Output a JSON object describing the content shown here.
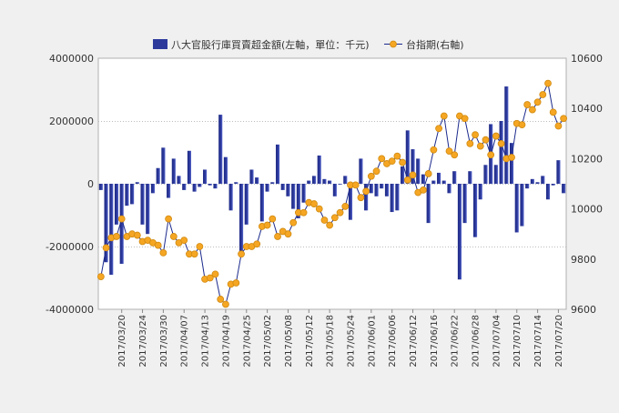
{
  "chart_data": {
    "type": "bar+line",
    "legend": {
      "placement": "top-center",
      "items": [
        {
          "label": "八大官股行庫買賣超金額(左軸，單位：千元)",
          "marker": "bar"
        },
        {
          "label": "台指期(右軸)",
          "marker": "line-circle"
        }
      ]
    },
    "left_axis": {
      "range": [
        -4000000,
        4000000
      ],
      "ticks": [
        "4000000",
        "2000000",
        "0",
        "-2000000",
        "-4000000"
      ],
      "tick_values": [
        4000000,
        2000000,
        0,
        -2000000,
        -4000000
      ]
    },
    "right_axis": {
      "range": [
        9600,
        10600
      ],
      "ticks": [
        "10600",
        "10400",
        "10200",
        "10000",
        "9800",
        "9600"
      ],
      "tick_values": [
        10600,
        10400,
        10200,
        10000,
        9800,
        9600
      ]
    },
    "x_tick_labels": [
      "2017/03/20",
      "2017/03/24",
      "2017/03/30",
      "2017/04/07",
      "2017/04/13",
      "2017/04/19",
      "2017/04/25",
      "2017/05/02",
      "2017/05/08",
      "2017/05/12",
      "2017/05/18",
      "2017/05/24",
      "2017/06/01",
      "2017/06/06",
      "2017/06/12",
      "2017/06/16",
      "2017/06/22",
      "2017/06/28",
      "2017/07/04",
      "2017/07/10",
      "2017/07/14",
      "2017/07/20"
    ],
    "x_tick_positions": [
      4,
      8,
      12,
      16,
      20,
      24,
      28,
      32,
      36,
      40,
      44,
      48,
      52,
      56,
      60,
      64,
      68,
      72,
      76,
      80,
      84,
      88
    ],
    "grid": {
      "horizontal": "dotted",
      "vertical": false
    },
    "series": [
      {
        "type": "bar",
        "axis": "left",
        "color": "#2d3a9c",
        "values": [
          -200000,
          -2500000,
          -2900000,
          -1300000,
          -2550000,
          -700000,
          -650000,
          50000,
          -1300000,
          -1600000,
          -300000,
          500000,
          1150000,
          -450000,
          800000,
          250000,
          -200000,
          1050000,
          -250000,
          -100000,
          450000,
          -50000,
          -150000,
          2200000,
          850000,
          -850000,
          50000,
          -2300000,
          -1300000,
          450000,
          200000,
          -1200000,
          -250000,
          50000,
          1250000,
          -200000,
          -400000,
          -800000,
          -1100000,
          -600000,
          100000,
          250000,
          900000,
          150000,
          100000,
          -400000,
          0,
          250000,
          -1150000,
          50000,
          800000,
          -850000,
          -300000,
          -400000,
          -150000,
          -400000,
          -900000,
          -850000,
          550000,
          1700000,
          1100000,
          800000,
          300000,
          -1250000,
          100000,
          350000,
          100000,
          -300000,
          400000,
          -3050000,
          -1250000,
          400000,
          -1700000,
          -500000,
          600000,
          1900000,
          600000,
          2000000,
          3100000,
          1300000,
          -1550000,
          -1350000,
          -150000,
          150000,
          50000,
          250000,
          -500000,
          -50000,
          750000,
          -300000
        ],
        "first_bar_index": 0
      },
      {
        "type": "line",
        "axis": "right",
        "color": "#1b2a8c",
        "marker_color": "#f5a623",
        "values": [
          9730,
          9845,
          9885,
          9890,
          9960,
          9890,
          9900,
          9895,
          9870,
          9875,
          9865,
          9855,
          9825,
          9960,
          9890,
          9865,
          9875,
          9820,
          9820,
          9850,
          9720,
          9725,
          9740,
          9640,
          9620,
          9700,
          9705,
          9820,
          9850,
          9850,
          9860,
          9930,
          9935,
          9960,
          9890,
          9910,
          9900,
          9945,
          9985,
          9985,
          10025,
          10020,
          10000,
          9955,
          9935,
          9965,
          9985,
          10010,
          10095,
          10095,
          10045,
          10070,
          10130,
          10150,
          10200,
          10180,
          10190,
          10210,
          10185,
          10115,
          10135,
          10065,
          10075,
          10140,
          10235,
          10320,
          10370,
          10230,
          10215,
          10370,
          10360,
          10260,
          10295,
          10250,
          10275,
          10215,
          10290,
          10260,
          10200,
          10205,
          10340,
          10335,
          10415,
          10395,
          10425,
          10455,
          10500,
          10385,
          10330,
          10360
        ],
        "first_point_index": 0
      }
    ]
  }
}
